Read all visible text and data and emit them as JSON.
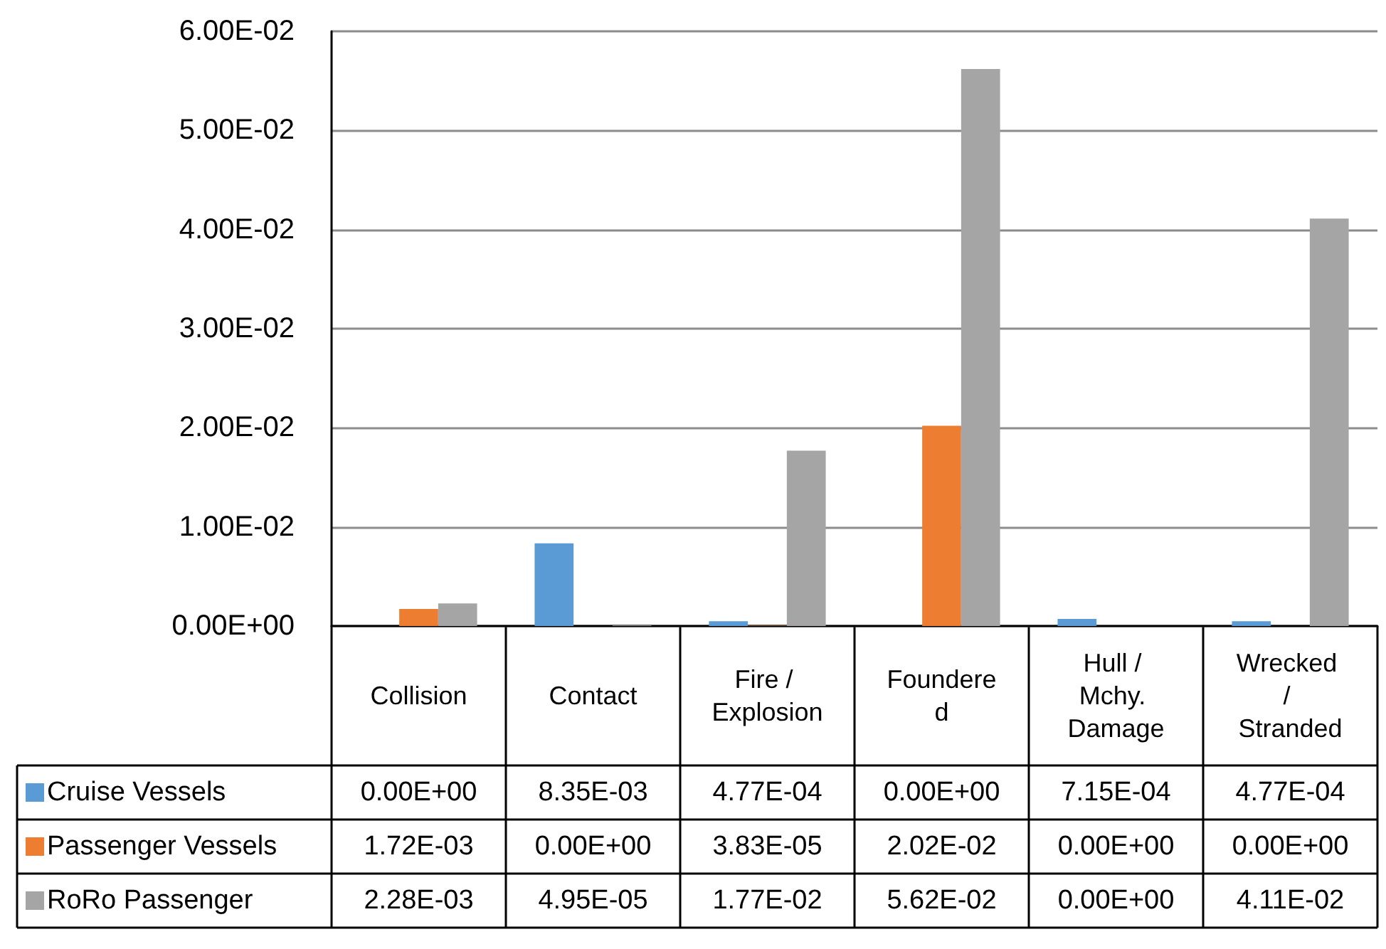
{
  "chart_data": {
    "type": "bar",
    "categories": [
      "Collision",
      "Contact",
      "Fire / Explosion",
      "Foundered",
      "Hull / Mchy. Damage",
      "Wrecked / Stranded"
    ],
    "series": [
      {
        "name": "Cruise Vessels",
        "color": "#5b9bd5",
        "values": [
          0,
          0.00835,
          0.000477,
          0,
          0.000715,
          0.000477
        ],
        "value_labels": [
          "0.00E+00",
          "8.35E-03",
          "4.77E-04",
          "0.00E+00",
          "7.15E-04",
          "4.77E-04"
        ]
      },
      {
        "name": "Passenger Vessels",
        "color": "#ed7d31",
        "values": [
          0.00172,
          0,
          3.83e-05,
          0.0202,
          0,
          0
        ],
        "value_labels": [
          "1.72E-03",
          "0.00E+00",
          "3.83E-05",
          "2.02E-02",
          "0.00E+00",
          "0.00E+00"
        ]
      },
      {
        "name": "RoRo Passenger",
        "color": "#a5a5a5",
        "values": [
          0.00228,
          4.95e-05,
          0.0177,
          0.0562,
          0,
          0.0411
        ],
        "value_labels": [
          "2.28E-03",
          "4.95E-05",
          "1.77E-02",
          "5.62E-02",
          "0.00E+00",
          "4.11E-02"
        ]
      }
    ],
    "ylim": [
      0,
      0.06
    ],
    "yticks": [
      {
        "value": 0,
        "label": "0.00E+00"
      },
      {
        "value": 0.01,
        "label": "1.00E-02"
      },
      {
        "value": 0.02,
        "label": "2.00E-02"
      },
      {
        "value": 0.03,
        "label": "3.00E-02"
      },
      {
        "value": 0.04,
        "label": "4.00E-02"
      },
      {
        "value": 0.05,
        "label": "5.00E-02"
      },
      {
        "value": 0.06,
        "label": "6.00E-02"
      }
    ],
    "grid": "y",
    "legend": "bottom left"
  }
}
